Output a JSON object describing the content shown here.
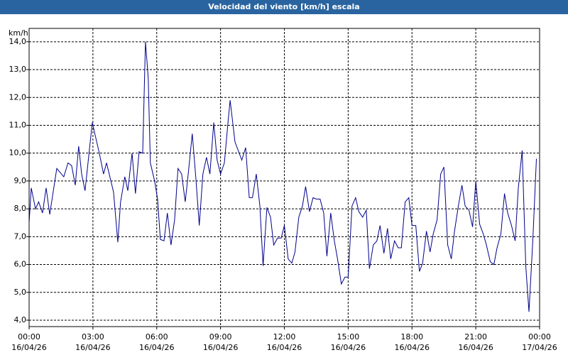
{
  "chart_data": {
    "type": "line",
    "title": "Velocidad del viento [km/h] escala",
    "y_unit": "km/h",
    "xlim": [
      0,
      24
    ],
    "xticks": [
      {
        "value": 0,
        "label": "00:00",
        "date": "16/04/26"
      },
      {
        "value": 3,
        "label": "03:00",
        "date": "16/04/26"
      },
      {
        "value": 6,
        "label": "06:00",
        "date": "16/04/26"
      },
      {
        "value": 9,
        "label": "09:00",
        "date": "16/04/26"
      },
      {
        "value": 12,
        "label": "12:00",
        "date": "16/04/26"
      },
      {
        "value": 15,
        "label": "15:00",
        "date": "16/04/26"
      },
      {
        "value": 18,
        "label": "18:00",
        "date": "16/04/26"
      },
      {
        "value": 21,
        "label": "21:00",
        "date": "16/04/26"
      },
      {
        "value": 24,
        "label": "00:00",
        "date": "17/04/26"
      }
    ],
    "ylim": [
      3.77,
      14.48
    ],
    "yticks": [
      {
        "value": 4,
        "label": "4,0"
      },
      {
        "value": 5,
        "label": "5,0"
      },
      {
        "value": 6,
        "label": "6,0"
      },
      {
        "value": 7,
        "label": "7,0"
      },
      {
        "value": 8,
        "label": "8,0"
      },
      {
        "value": 9,
        "label": "9,0"
      },
      {
        "value": 10,
        "label": "10,0"
      },
      {
        "value": 11,
        "label": "11,0"
      },
      {
        "value": 12,
        "label": "12,0"
      },
      {
        "value": 13,
        "label": "13,0"
      },
      {
        "value": 14,
        "label": "14,0"
      }
    ],
    "grid": true,
    "series": [
      {
        "color": "#00008c",
        "x": [
          0,
          0.1,
          0.3,
          0.45,
          0.63,
          0.8,
          0.97,
          1.3,
          1.63,
          1.83,
          2.0,
          2.17,
          2.33,
          2.47,
          2.63,
          2.97,
          3.3,
          3.5,
          3.64,
          3.97,
          4.17,
          4.3,
          4.5,
          4.64,
          4.84,
          5.0,
          5.17,
          5.34,
          5.47,
          5.6,
          5.7,
          5.9,
          6.04,
          6.17,
          6.34,
          6.5,
          6.67,
          6.84,
          7.0,
          7.17,
          7.34,
          7.5,
          7.67,
          7.84,
          8.0,
          8.17,
          8.34,
          8.5,
          8.68,
          8.84,
          9.0,
          9.18,
          9.35,
          9.45,
          9.68,
          10.0,
          10.18,
          10.35,
          10.5,
          10.68,
          10.85,
          11.0,
          11.18,
          11.35,
          11.5,
          11.68,
          11.85,
          12.0,
          12.18,
          12.35,
          12.5,
          12.68,
          12.85,
          13.0,
          13.18,
          13.35,
          13.5,
          13.68,
          13.85,
          14.0,
          14.18,
          14.35,
          14.5,
          14.68,
          14.85,
          15.0,
          15.18,
          15.35,
          15.5,
          15.68,
          15.85,
          16.0,
          16.18,
          16.35,
          16.5,
          16.68,
          16.85,
          17.0,
          17.18,
          17.35,
          17.5,
          17.68,
          17.85,
          18.0,
          18.18,
          18.35,
          18.5,
          18.68,
          18.85,
          19.0,
          19.18,
          19.35,
          19.5,
          19.68,
          19.85,
          20.0,
          20.18,
          20.35,
          20.5,
          20.68,
          20.85,
          21.0,
          21.18,
          21.35,
          21.5,
          21.68,
          21.85,
          22.0,
          22.18,
          22.35,
          22.5,
          22.68,
          22.85,
          23.0,
          23.18,
          23.35,
          23.5,
          23.68,
          23.85
        ],
        "values": [
          7.5,
          8.75,
          8.0,
          8.25,
          7.85,
          8.75,
          7.8,
          9.45,
          9.15,
          9.65,
          9.55,
          8.85,
          10.25,
          9.25,
          8.65,
          11.1,
          10.0,
          9.25,
          9.65,
          8.6,
          6.8,
          8.25,
          9.15,
          8.65,
          10.0,
          8.55,
          10.05,
          10.0,
          14.0,
          12.7,
          9.65,
          9.0,
          8.35,
          6.9,
          6.85,
          7.85,
          6.7,
          7.6,
          9.45,
          9.25,
          8.25,
          9.4,
          10.7,
          9.1,
          7.4,
          9.25,
          9.85,
          9.25,
          11.1,
          9.75,
          9.25,
          9.65,
          11.1,
          11.9,
          10.4,
          9.75,
          10.2,
          8.4,
          8.4,
          9.25,
          8.1,
          5.95,
          8.05,
          7.7,
          6.7,
          6.95,
          6.95,
          7.4,
          6.2,
          6.05,
          6.45,
          7.7,
          8.1,
          8.8,
          7.9,
          8.4,
          8.35,
          8.35,
          7.85,
          6.3,
          7.85,
          6.85,
          6.2,
          5.3,
          5.55,
          5.55,
          8.1,
          8.4,
          7.9,
          7.7,
          7.95,
          5.85,
          6.7,
          6.85,
          7.4,
          6.4,
          7.3,
          6.2,
          6.85,
          6.6,
          6.6,
          8.25,
          8.4,
          7.4,
          7.4,
          5.75,
          6.05,
          7.2,
          6.45,
          7.1,
          7.6,
          9.25,
          9.5,
          6.7,
          6.2,
          7.2,
          8.1,
          8.85,
          8.1,
          7.95,
          7.35,
          9.0,
          7.45,
          7.1,
          6.7,
          6.1,
          6.0,
          6.6,
          7.1,
          8.55,
          7.85,
          7.4,
          6.85,
          8.75,
          10.1,
          5.95,
          4.3,
          6.85,
          9.8
        ]
      }
    ]
  }
}
